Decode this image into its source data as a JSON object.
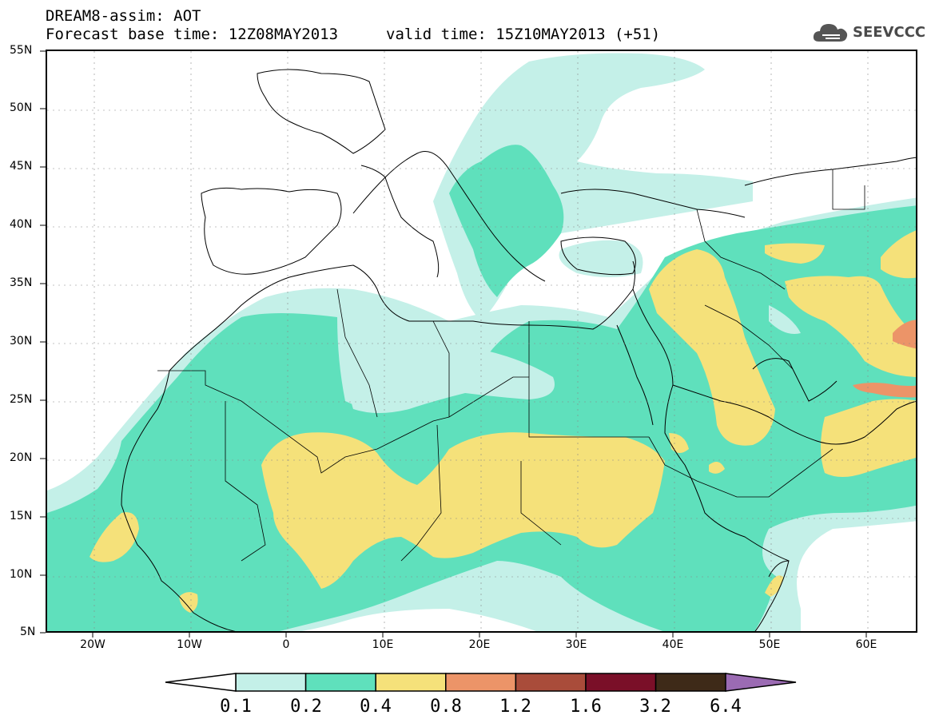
{
  "header": {
    "title": "DREAM8-assim: AOT",
    "base_time": "Forecast base time: 12Z08MAY2013",
    "valid_time": "valid time: 15Z10MAY2013 (+51)"
  },
  "logo": {
    "text": "SEEVCCC",
    "icon": "cloud-icon"
  },
  "map": {
    "lat_labels": [
      "55N",
      "50N",
      "45N",
      "40N",
      "35N",
      "30N",
      "25N",
      "20N",
      "15N",
      "10N",
      "5N"
    ],
    "lon_labels": [
      "20W",
      "10W",
      "0",
      "10E",
      "20E",
      "30E",
      "40E",
      "50E",
      "60E"
    ],
    "lat_range": [
      5,
      55
    ],
    "lon_range": [
      -25,
      65
    ],
    "grid": true
  },
  "colorbar": {
    "ticks": [
      "0.1",
      "0.2",
      "0.4",
      "0.8",
      "1.2",
      "1.6",
      "3.2",
      "6.4"
    ],
    "colors": [
      "#c4f0e8",
      "#5fe0bc",
      "#f5e17a",
      "#ec9468",
      "#a94c3a",
      "#7a0f28",
      "#3e2a18"
    ],
    "under_color": "#ffffff",
    "over_color": "#9b6bb3"
  },
  "colors": {
    "aot_01_02": "#c4f0e8",
    "aot_02_04": "#5fe0bc",
    "aot_04_08": "#f5e17a",
    "aot_08_12": "#ec9468"
  }
}
